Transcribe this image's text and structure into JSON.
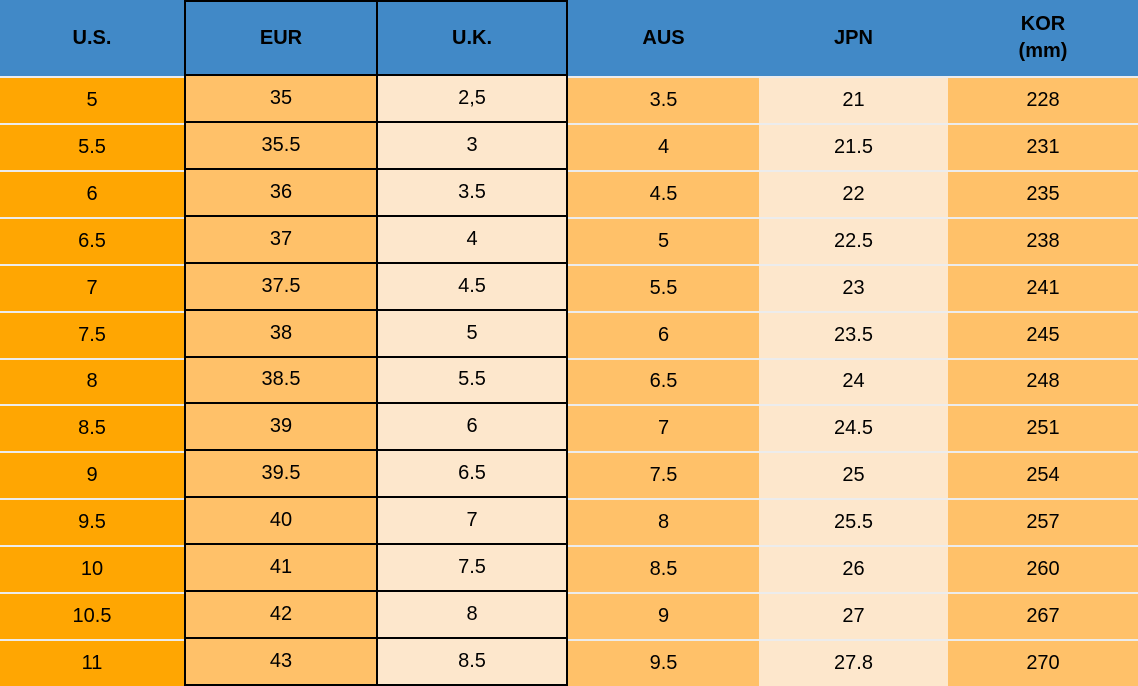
{
  "colors": {
    "header_bg": "#4189C7",
    "header_text": "#000000",
    "orange": "#FFA602",
    "amber": "#FFC169",
    "cream": "#FDE7CC",
    "border_black": "#000000",
    "separator": "#ECECEC"
  },
  "chart_data": {
    "type": "table",
    "columns": [
      {
        "key": "us",
        "label": "U.S.",
        "style": "orange",
        "bordered": false
      },
      {
        "key": "eur",
        "label": "EUR",
        "style": "amber",
        "bordered": true
      },
      {
        "key": "uk",
        "label": "U.K.",
        "style": "cream",
        "bordered": true
      },
      {
        "key": "aus",
        "label": "AUS",
        "style": "amber",
        "bordered": false
      },
      {
        "key": "jpn",
        "label": "JPN",
        "style": "cream",
        "bordered": false
      },
      {
        "key": "kor",
        "label": "KOR",
        "label2": "(mm)",
        "style": "amber",
        "bordered": false
      }
    ],
    "rows": [
      {
        "us": "5",
        "eur": "35",
        "uk": "2,5",
        "aus": "3.5",
        "jpn": "21",
        "kor": "228"
      },
      {
        "us": "5.5",
        "eur": "35.5",
        "uk": "3",
        "aus": "4",
        "jpn": "21.5",
        "kor": "231"
      },
      {
        "us": "6",
        "eur": "36",
        "uk": "3.5",
        "aus": "4.5",
        "jpn": "22",
        "kor": "235"
      },
      {
        "us": "6.5",
        "eur": "37",
        "uk": "4",
        "aus": "5",
        "jpn": "22.5",
        "kor": "238"
      },
      {
        "us": "7",
        "eur": "37.5",
        "uk": "4.5",
        "aus": "5.5",
        "jpn": "23",
        "kor": "241"
      },
      {
        "us": "7.5",
        "eur": "38",
        "uk": "5",
        "aus": "6",
        "jpn": "23.5",
        "kor": "245"
      },
      {
        "us": "8",
        "eur": "38.5",
        "uk": "5.5",
        "aus": "6.5",
        "jpn": "24",
        "kor": "248"
      },
      {
        "us": "8.5",
        "eur": "39",
        "uk": "6",
        "aus": "7",
        "jpn": "24.5",
        "kor": "251"
      },
      {
        "us": "9",
        "eur": "39.5",
        "uk": "6.5",
        "aus": "7.5",
        "jpn": "25",
        "kor": "254"
      },
      {
        "us": "9.5",
        "eur": "40",
        "uk": "7",
        "aus": "8",
        "jpn": "25.5",
        "kor": "257"
      },
      {
        "us": "10",
        "eur": "41",
        "uk": "7.5",
        "aus": "8.5",
        "jpn": "26",
        "kor": "260"
      },
      {
        "us": "10.5",
        "eur": "42",
        "uk": "8",
        "aus": "9",
        "jpn": "27",
        "kor": "267"
      },
      {
        "us": "11",
        "eur": "43",
        "uk": "8.5",
        "aus": "9.5",
        "jpn": "27.8",
        "kor": "270"
      }
    ]
  }
}
